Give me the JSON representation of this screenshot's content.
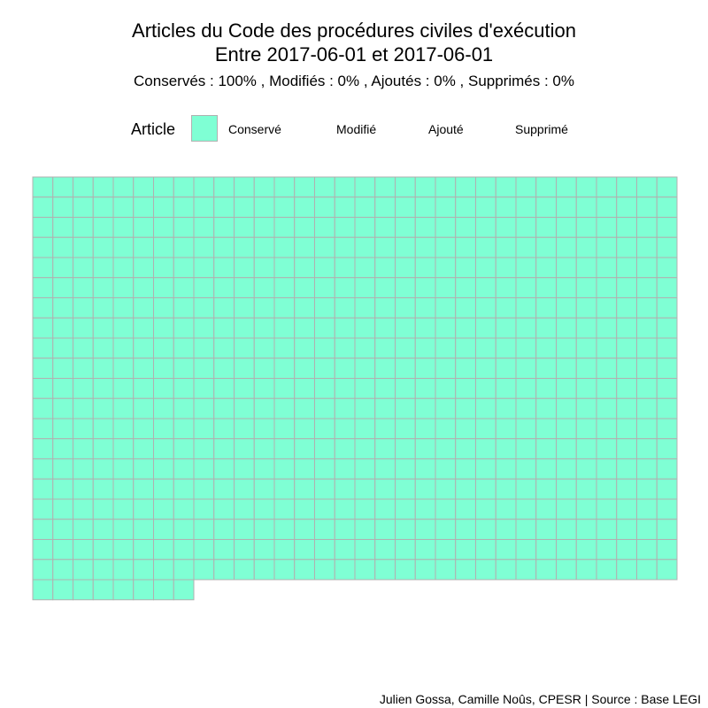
{
  "header": {
    "title_line1": "Articles du Code des procédures civiles d'exécution",
    "title_line2": "Entre 2017-06-01 et 2017-06-01",
    "subtitle": "Conservés :  100% , Modifiés :  0% , Ajoutés :  0% , Supprimés :  0%"
  },
  "legend": {
    "title": "Article",
    "items": [
      {
        "label": "Conservé",
        "color": "#7FFFD4"
      },
      {
        "label": "Modifié",
        "color": ""
      },
      {
        "label": "Ajouté",
        "color": ""
      },
      {
        "label": "Supprimé",
        "color": ""
      }
    ]
  },
  "caption": "Julien Gossa, Camille Noûs, CPESR  |  Source : Base LEGI",
  "chart_data": {
    "type": "heatmap",
    "title": "",
    "columns": 32,
    "categories": [
      "Conservé",
      "Modifié",
      "Ajouté",
      "Supprimé"
    ],
    "counts": {
      "Conservé": 648,
      "Modifié": 0,
      "Ajouté": 0,
      "Supprimé": 0
    },
    "cell_fill": "#7FFFD4",
    "cell_stroke": "#B0B0B0",
    "legend_position": "top"
  }
}
